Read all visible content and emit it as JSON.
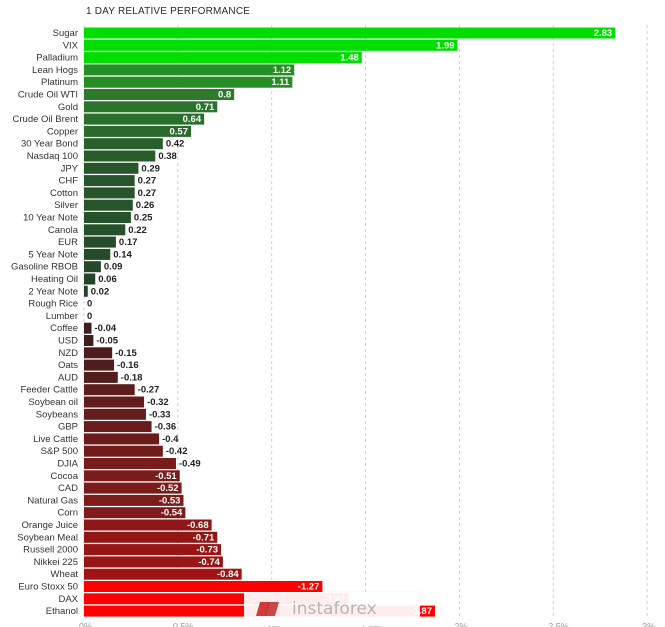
{
  "chart_data": {
    "type": "bar",
    "orientation": "horizontal",
    "title": "1 DAY RELATIVE PERFORMANCE",
    "xlim": [
      0,
      3
    ],
    "x_ticks": [
      "0%",
      "0.5%",
      "1%",
      "1.5%",
      "2%",
      "2.5%",
      "3%"
    ],
    "grid": true,
    "colors": {
      "positive_top": "#00dd00",
      "positive_mid": "#2d7a2d",
      "positive_low": "#24412a",
      "neutral": "#2a2a2a",
      "negative_low": "#3a1e1e",
      "negative_mid": "#7a1c1c",
      "negative_top": "#ff0000"
    },
    "categories": [
      "Sugar",
      "VIX",
      "Palladium",
      "Lean Hogs",
      "Platinum",
      "Crude Oil WTI",
      "Gold",
      "Crude Oil Brent",
      "Copper",
      "30 Year Bond",
      "Nasdaq 100",
      "JPY",
      "CHF",
      "Cotton",
      "Silver",
      "10 Year Note",
      "Canola",
      "EUR",
      "5 Year Note",
      "Gasoline RBOB",
      "Heating Oil",
      "2 Year Note",
      "Rough Rice",
      "Lumber",
      "Coffee",
      "USD",
      "NZD",
      "Oats",
      "AUD",
      "Feeder Cattle",
      "Soybean oil",
      "Soybeans",
      "GBP",
      "Live Cattle",
      "S&P 500",
      "DJIA",
      "Cocoa",
      "CAD",
      "Natural Gas",
      "Corn",
      "Orange Juice",
      "Soybean Meal",
      "Russell 2000",
      "Nikkei 225",
      "Wheat",
      "Euro Stoxx 50",
      "DAX",
      "Ethanol"
    ],
    "values": [
      2.83,
      1.99,
      1.48,
      1.12,
      1.11,
      0.8,
      0.71,
      0.64,
      0.57,
      0.42,
      0.38,
      0.29,
      0.27,
      0.27,
      0.26,
      0.25,
      0.22,
      0.17,
      0.14,
      0.09,
      0.06,
      0.02,
      0,
      0,
      -0.04,
      -0.05,
      -0.15,
      -0.16,
      -0.18,
      -0.27,
      -0.32,
      -0.33,
      -0.36,
      -0.4,
      -0.42,
      -0.49,
      -0.51,
      -0.52,
      -0.53,
      -0.54,
      -0.68,
      -0.71,
      -0.73,
      -0.74,
      -0.84,
      -1.27,
      -1.41,
      -1.87
    ],
    "value_labels": [
      "2.83",
      "1.99",
      "1.48",
      "1.12",
      "1.11",
      "0.8",
      "0.71",
      "0.64",
      "0.57",
      "0.42",
      "0.38",
      "0.29",
      "0.27",
      "0.27",
      "0.26",
      "0.25",
      "0.22",
      "0.17",
      "0.14",
      "0.09",
      "0.06",
      "0.02",
      "0",
      "0",
      "-0.04",
      "-0.05",
      "-0.15",
      "-0.16",
      "-0.18",
      "-0.27",
      "-0.32",
      "-0.33",
      "-0.36",
      "-0.4",
      "-0.42",
      "-0.49",
      "-0.51",
      "-0.52",
      "-0.53",
      "-0.54",
      "-0.68",
      "-0.71",
      "-0.73",
      "-0.74",
      "-0.84",
      "-1.27",
      "-1.41",
      "-1.87"
    ]
  },
  "watermark": {
    "text": "instaforex",
    "icon": "instaforex-logo-icon"
  }
}
